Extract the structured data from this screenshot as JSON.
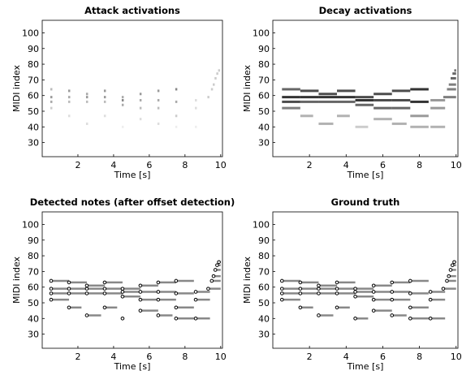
{
  "chart_data": [
    {
      "type": "attack",
      "title": "Attack activations",
      "xlabel": "Time [s]",
      "ylabel": "MIDI index",
      "xlim": [
        0,
        10.1
      ],
      "ylim": [
        21,
        108
      ],
      "xticks": [
        2,
        4,
        6,
        8,
        10
      ],
      "yticks": [
        30,
        40,
        50,
        60,
        70,
        80,
        90,
        100
      ],
      "color": "#555555",
      "x": [
        0.5,
        0.5,
        0.5,
        0.5,
        1.5,
        1.5,
        1.5,
        1.5,
        2.5,
        2.5,
        2.5,
        2.5,
        3.5,
        3.5,
        3.5,
        3.5,
        4.5,
        4.5,
        4.5,
        4.5,
        5.5,
        5.5,
        5.5,
        5.5,
        6.5,
        6.5,
        6.5,
        6.5,
        7.5,
        7.5,
        7.5,
        7.5,
        8.6,
        8.6,
        8.6,
        9.3,
        9.5,
        9.6,
        9.7,
        9.8,
        9.9
      ],
      "values": [
        64,
        59,
        56,
        52,
        63,
        59,
        56,
        47,
        61,
        59,
        56,
        42,
        63,
        59,
        56,
        47,
        59,
        57,
        54,
        40,
        61,
        57,
        52,
        45,
        63,
        57,
        52,
        42,
        64,
        56,
        47,
        40,
        57,
        52,
        40,
        59,
        64,
        67,
        71,
        74,
        76
      ],
      "intensity": [
        0.4,
        0.6,
        0.5,
        0.3,
        0.6,
        0.5,
        0.4,
        0.2,
        0.5,
        0.6,
        0.4,
        0.2,
        0.6,
        0.6,
        0.4,
        0.2,
        0.5,
        0.7,
        0.5,
        0.1,
        0.6,
        0.5,
        0.4,
        0.2,
        0.6,
        0.5,
        0.4,
        0.2,
        0.7,
        0.5,
        0.3,
        0.1,
        0.2,
        0.2,
        0.1,
        0.3,
        0.3,
        0.3,
        0.3,
        0.3,
        0.3
      ]
    },
    {
      "type": "decay",
      "title": "Decay activations",
      "xlabel": "Time [s]",
      "ylabel": "MIDI index",
      "xlim": [
        0,
        10.1
      ],
      "ylim": [
        21,
        108
      ],
      "xticks": [
        2,
        4,
        6,
        8,
        10
      ],
      "yticks": [
        30,
        40,
        50,
        60,
        70,
        80,
        90,
        100
      ],
      "color": "#000000",
      "x": [
        0.5,
        0.5,
        0.5,
        0.5,
        1.5,
        1.5,
        1.5,
        1.5,
        2.5,
        2.5,
        2.5,
        2.5,
        3.5,
        3.5,
        3.5,
        3.5,
        4.5,
        4.5,
        4.5,
        4.5,
        5.5,
        5.5,
        5.5,
        5.5,
        6.5,
        6.5,
        6.5,
        6.5,
        7.5,
        7.5,
        7.5,
        7.5,
        8.6,
        8.6,
        8.6,
        9.3,
        9.5,
        9.6,
        9.7,
        9.8,
        9.9
      ],
      "x_end": [
        1.5,
        1.5,
        1.5,
        1.5,
        2.5,
        2.5,
        2.5,
        2.2,
        3.5,
        3.5,
        3.5,
        3.3,
        4.5,
        4.5,
        4.5,
        4.2,
        5.5,
        5.5,
        5.5,
        5.2,
        6.5,
        6.5,
        6.5,
        6.5,
        7.5,
        7.5,
        7.5,
        7.3,
        8.5,
        8.5,
        8.5,
        8.5,
        9.4,
        9.4,
        9.4,
        10,
        10,
        10,
        10,
        10,
        10
      ],
      "values": [
        64,
        59,
        56,
        52,
        63,
        59,
        56,
        47,
        61,
        59,
        56,
        42,
        63,
        59,
        56,
        47,
        59,
        57,
        54,
        40,
        61,
        57,
        52,
        45,
        63,
        57,
        52,
        42,
        64,
        56,
        47,
        40,
        57,
        52,
        40,
        59,
        64,
        67,
        71,
        74,
        76
      ],
      "intensity": [
        0.6,
        0.8,
        0.7,
        0.5,
        0.7,
        0.8,
        0.6,
        0.3,
        0.7,
        0.8,
        0.6,
        0.3,
        0.7,
        0.8,
        0.6,
        0.3,
        0.7,
        0.8,
        0.6,
        0.2,
        0.7,
        0.7,
        0.6,
        0.3,
        0.7,
        0.7,
        0.6,
        0.3,
        0.8,
        0.8,
        0.4,
        0.3,
        0.4,
        0.4,
        0.3,
        0.5,
        0.5,
        0.5,
        0.6,
        0.6,
        0.6
      ]
    },
    {
      "type": "notes",
      "title": "Detected notes (after offset detection)",
      "xlabel": "Time [s]",
      "ylabel": "MIDI index",
      "xlim": [
        0,
        10.1
      ],
      "ylim": [
        21,
        108
      ],
      "xticks": [
        2,
        4,
        6,
        8,
        10
      ],
      "yticks": [
        30,
        40,
        50,
        60,
        70,
        80,
        90,
        100
      ],
      "color": "#888888",
      "onsets": [
        0.5,
        0.5,
        0.5,
        0.5,
        1.5,
        1.5,
        1.5,
        1.5,
        2.5,
        2.5,
        2.5,
        2.5,
        3.5,
        3.5,
        3.5,
        3.5,
        4.5,
        4.5,
        4.5,
        4.5,
        5.5,
        5.5,
        5.5,
        5.5,
        6.5,
        6.5,
        6.5,
        6.5,
        7.5,
        7.5,
        7.5,
        7.5,
        8.6,
        8.6,
        8.6,
        9.3,
        9.5,
        9.6,
        9.7,
        9.8,
        9.9
      ],
      "offsets": [
        1.5,
        1.5,
        1.5,
        1.5,
        2.5,
        2.5,
        2.5,
        2.2,
        3.5,
        3.5,
        3.5,
        3.3,
        4.5,
        4.5,
        4.5,
        4.2,
        5.5,
        5.5,
        5.5,
        4.6,
        6.5,
        6.5,
        6.5,
        6.5,
        7.5,
        7.5,
        7.5,
        7.3,
        8.5,
        8.5,
        8.5,
        8.5,
        9.4,
        9.4,
        9.4,
        10,
        10,
        10,
        10,
        10,
        10
      ],
      "pitches": [
        64,
        59,
        56,
        52,
        63,
        59,
        56,
        47,
        61,
        59,
        56,
        42,
        63,
        59,
        56,
        47,
        59,
        57,
        54,
        40,
        61,
        57,
        52,
        45,
        63,
        57,
        52,
        42,
        64,
        56,
        47,
        40,
        57,
        52,
        40,
        59,
        64,
        67,
        71,
        74,
        76
      ]
    },
    {
      "type": "notes",
      "title": "Ground truth",
      "xlabel": "Time [s]",
      "ylabel": "MIDI index",
      "xlim": [
        0,
        10.1
      ],
      "ylim": [
        21,
        108
      ],
      "xticks": [
        2,
        4,
        6,
        8,
        10
      ],
      "yticks": [
        30,
        40,
        50,
        60,
        70,
        80,
        90,
        100
      ],
      "color": "#888888",
      "onsets": [
        0.5,
        0.5,
        0.5,
        0.5,
        1.5,
        1.5,
        1.5,
        1.5,
        2.5,
        2.5,
        2.5,
        2.5,
        3.5,
        3.5,
        3.5,
        3.5,
        4.5,
        4.5,
        4.5,
        4.5,
        5.5,
        5.5,
        5.5,
        5.5,
        6.5,
        6.5,
        6.5,
        6.5,
        7.5,
        7.5,
        7.5,
        7.5,
        8.6,
        8.6,
        8.6,
        9.3,
        9.5,
        9.6,
        9.7,
        9.8,
        9.9
      ],
      "offsets": [
        1.5,
        1.5,
        1.5,
        1.5,
        2.5,
        2.5,
        2.5,
        2.2,
        3.5,
        3.5,
        3.5,
        3.3,
        4.5,
        4.5,
        4.5,
        4.2,
        5.5,
        5.5,
        5.5,
        5.2,
        6.5,
        6.5,
        6.5,
        6.5,
        7.5,
        7.5,
        7.5,
        7.3,
        8.5,
        8.5,
        8.5,
        8.5,
        9.4,
        9.4,
        9.4,
        10,
        10,
        10,
        10,
        10,
        10
      ],
      "pitches": [
        64,
        59,
        56,
        52,
        63,
        59,
        56,
        47,
        61,
        59,
        56,
        42,
        63,
        59,
        56,
        47,
        59,
        57,
        54,
        40,
        61,
        57,
        52,
        45,
        63,
        57,
        52,
        42,
        64,
        56,
        47,
        40,
        57,
        52,
        40,
        59,
        64,
        67,
        71,
        74,
        76
      ]
    }
  ]
}
